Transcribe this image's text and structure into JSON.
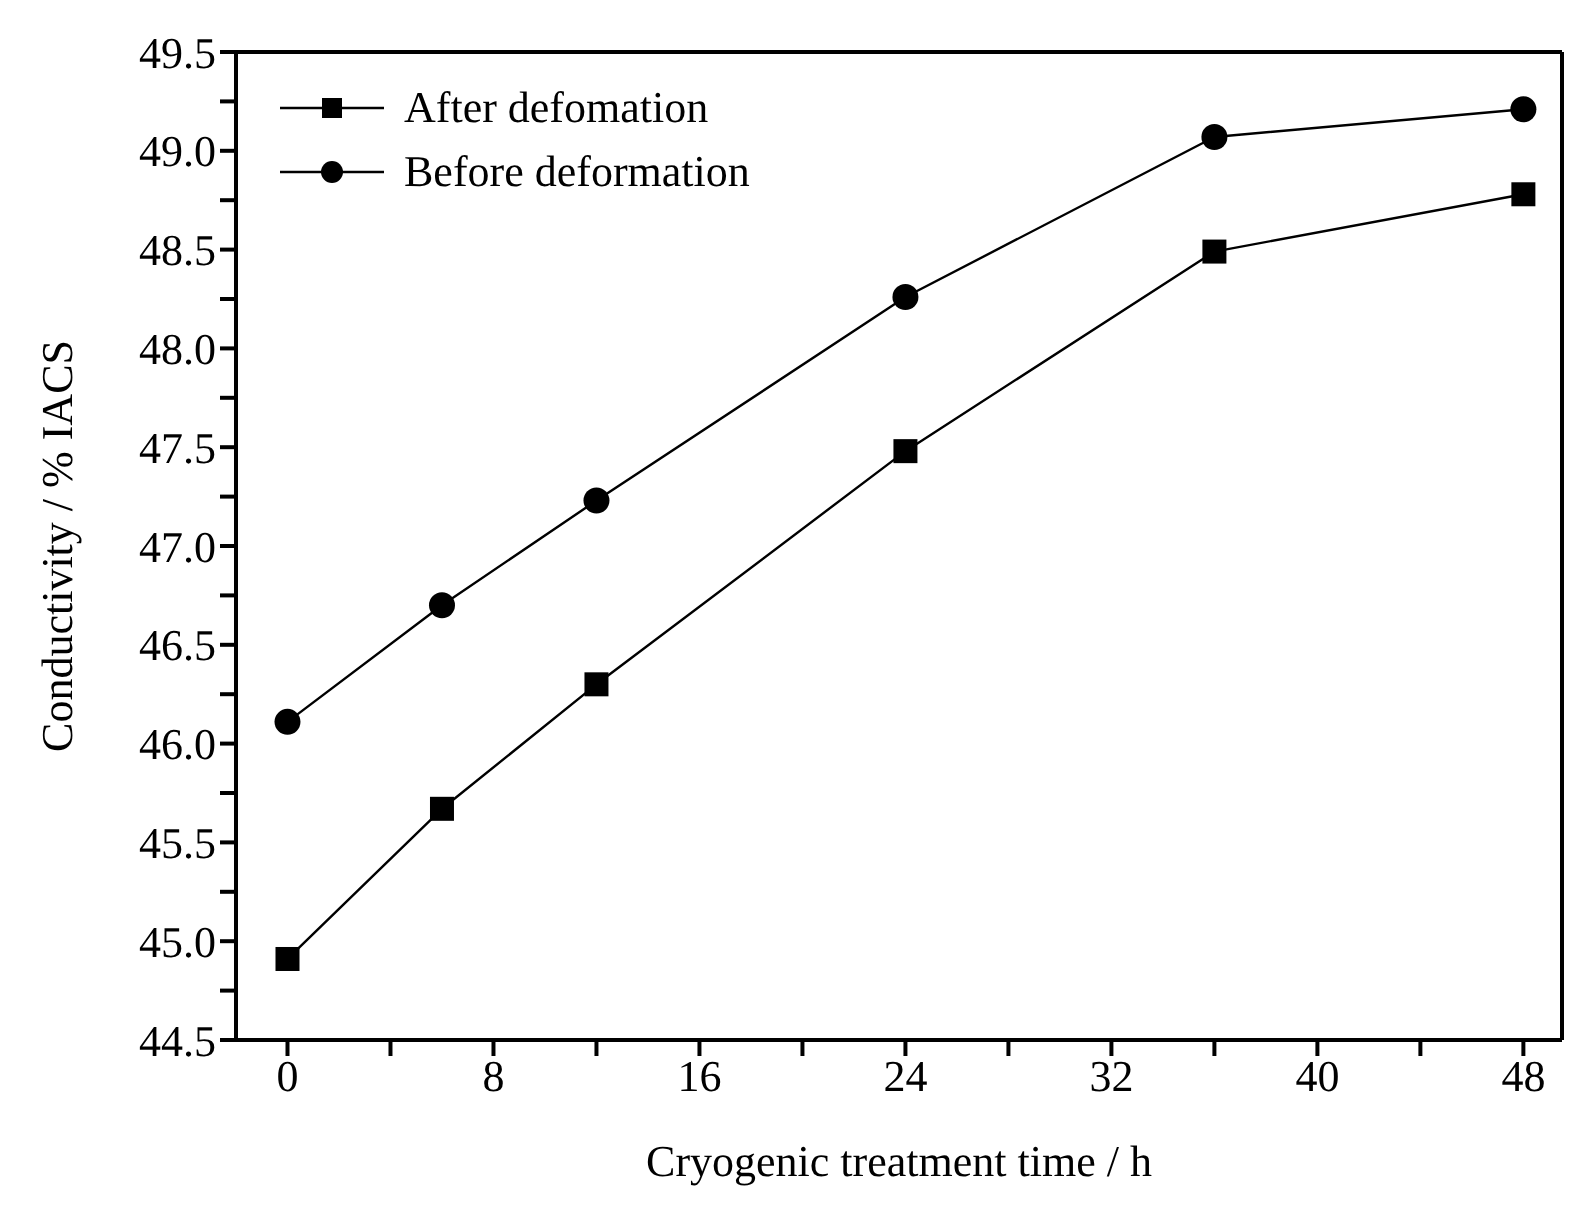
{
  "chart_data": {
    "type": "line",
    "xlabel": "Cryogenic treatment time / h",
    "ylabel": "Conductivity / % IACS",
    "xlim": [
      -2,
      49.5
    ],
    "xticks": [
      0,
      {
        "value": 4,
        "label": null
      },
      8,
      {
        "value": 12,
        "label": null
      },
      16,
      {
        "value": 20,
        "label": null
      },
      24,
      {
        "value": 28,
        "label": null
      },
      32,
      {
        "value": 36,
        "label": null
      },
      40,
      {
        "value": 44,
        "label": null
      },
      48
    ],
    "ylim": [
      44.5,
      49.5
    ],
    "yticks": [
      44.5,
      {
        "value": 44.75,
        "label": null
      },
      "45.0",
      {
        "value": 45.25,
        "label": null
      },
      45.5,
      {
        "value": 45.75,
        "label": null
      },
      "46.0",
      {
        "value": 46.25,
        "label": null
      },
      46.5,
      {
        "value": 46.75,
        "label": null
      },
      "47.0",
      {
        "value": 47.25,
        "label": null
      },
      47.5,
      {
        "value": 47.75,
        "label": null
      },
      "48.0",
      {
        "value": 48.25,
        "label": null
      },
      48.5,
      {
        "value": 48.75,
        "label": null
      },
      "49.0",
      {
        "value": 49.25,
        "label": null
      },
      49.5
    ],
    "x": [
      0,
      6,
      12,
      24,
      36,
      48
    ],
    "series": [
      {
        "name": "After defomation",
        "color": "#000000",
        "marker": "square",
        "values": [
          44.91,
          45.67,
          46.3,
          47.48,
          48.49,
          48.78
        ]
      },
      {
        "name": "Before deformation",
        "color": "#000000",
        "marker": "circle",
        "values": [
          46.11,
          46.7,
          47.23,
          48.26,
          49.07,
          49.21
        ]
      }
    ],
    "legend": "top left",
    "grid": false,
    "line_style": "solid"
  }
}
